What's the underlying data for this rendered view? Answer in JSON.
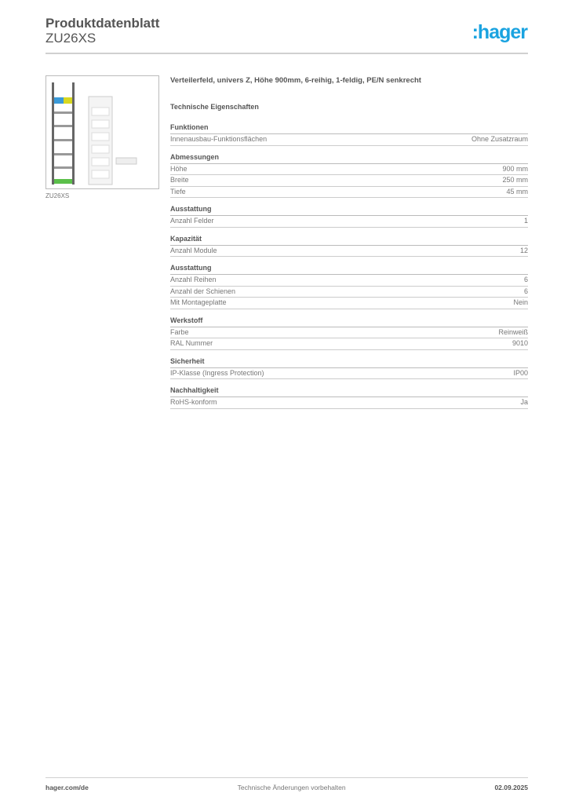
{
  "header": {
    "title": "Produktdatenblatt",
    "code": "ZU26XS",
    "logo": ":hager",
    "brand_color": "#1aa3e0"
  },
  "image": {
    "caption": "ZU26XS"
  },
  "description": "Verteilerfeld, univers Z, Höhe 900mm, 6-reihig, 1-feldig, PE/N senkrecht",
  "tech_heading": "Technische Eigenschaften",
  "sections": [
    {
      "title": "Funktionen",
      "rows": [
        [
          "Innenausbau-Funktionsflächen",
          "Ohne Zusatzraum"
        ]
      ]
    },
    {
      "title": "Abmessungen",
      "rows": [
        [
          "Höhe",
          "900 mm"
        ],
        [
          "Breite",
          "250 mm"
        ],
        [
          "Tiefe",
          "45 mm"
        ]
      ]
    },
    {
      "title": "Ausstattung",
      "rows": [
        [
          "Anzahl Felder",
          "1"
        ]
      ]
    },
    {
      "title": "Kapazität",
      "rows": [
        [
          "Anzahl Module",
          "12"
        ]
      ]
    },
    {
      "title": "Ausstattung",
      "rows": [
        [
          "Anzahl Reihen",
          "6"
        ],
        [
          "Anzahl der Schienen",
          "6"
        ],
        [
          "Mit Montageplatte",
          "Nein"
        ]
      ]
    },
    {
      "title": "Werkstoff",
      "rows": [
        [
          "Farbe",
          "Reinweiß"
        ],
        [
          "RAL Nummer",
          "9010"
        ]
      ]
    },
    {
      "title": "Sicherheit",
      "rows": [
        [
          "IP-Klasse (Ingress Protection)",
          "IP00"
        ]
      ]
    },
    {
      "title": "Nachhaltigkeit",
      "rows": [
        [
          "RoHS-konform",
          "Ja"
        ]
      ]
    }
  ],
  "footer": {
    "website": "hager.com/de",
    "notice": "Technische Änderungen vorbehalten",
    "date": "02.09.2025"
  }
}
